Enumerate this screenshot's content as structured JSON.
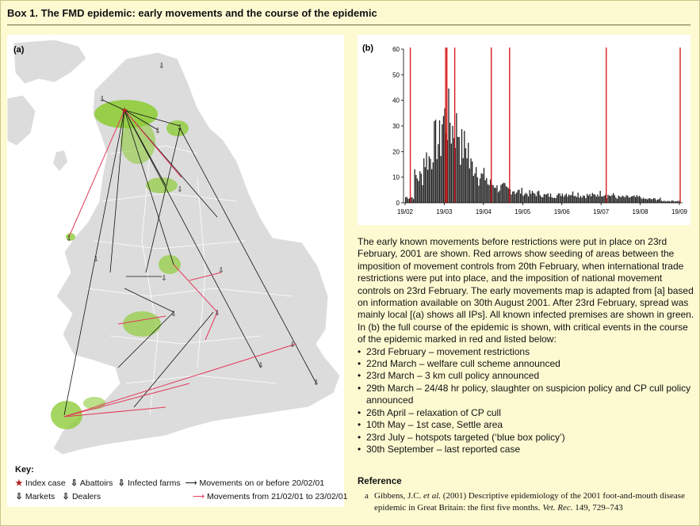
{
  "box_title": "Box 1. The FMD epidemic: early movements and the course of the epidemic",
  "panel_a_label": "(a)",
  "panel_b_label": "(b)",
  "key": {
    "title": "Key:",
    "index_case": "Index case",
    "abattoirs": "Abattoirs",
    "infected_farms": "Infected farms",
    "movements_before": "Movements on or before 20/02/01",
    "markets": "Markets",
    "dealers": "Dealers",
    "movements_after": "Movements from 21/02/01 to 23/02/01"
  },
  "colors": {
    "background": "#fdfad2",
    "land": "#dcdcdc",
    "infected": "#8fcc3a",
    "red_arrow": "#e23a5a",
    "event_line": "#d91c1c"
  },
  "chart_data": {
    "type": "bar",
    "ylim": [
      0,
      60
    ],
    "yticks": [
      0,
      10,
      20,
      30,
      40,
      50,
      60
    ],
    "xtick_labels": [
      "19/02",
      "19/03",
      "19/04",
      "19/05",
      "19/06",
      "19/07",
      "19/08",
      "19/09"
    ],
    "critical_event_labels": [
      "23/02",
      "22/03",
      "23/03",
      "29/03",
      "26/04",
      "10/05",
      "23/07",
      "30/09"
    ],
    "weekly_peak_cases": [
      {
        "week": "19/02",
        "value": 3
      },
      {
        "week": "26/02",
        "value": 14
      },
      {
        "week": "05/03",
        "value": 24
      },
      {
        "week": "12/03",
        "value": 33
      },
      {
        "week": "19/03",
        "value": 45
      },
      {
        "week": "26/03",
        "value": 40
      },
      {
        "week": "02/04",
        "value": 30
      },
      {
        "week": "09/04",
        "value": 20
      },
      {
        "week": "16/04",
        "value": 14
      },
      {
        "week": "23/04",
        "value": 10
      },
      {
        "week": "30/04",
        "value": 8
      },
      {
        "week": "07/05",
        "value": 7
      },
      {
        "week": "14/05",
        "value": 6
      },
      {
        "week": "21/05",
        "value": 5
      },
      {
        "week": "28/05",
        "value": 5
      },
      {
        "week": "04/06",
        "value": 4
      },
      {
        "week": "11/06",
        "value": 4
      },
      {
        "week": "18/06",
        "value": 5
      },
      {
        "week": "25/06",
        "value": 5
      },
      {
        "week": "02/07",
        "value": 4
      },
      {
        "week": "09/07",
        "value": 4
      },
      {
        "week": "16/07",
        "value": 5
      },
      {
        "week": "23/07",
        "value": 4
      },
      {
        "week": "30/07",
        "value": 3
      },
      {
        "week": "06/08",
        "value": 3
      },
      {
        "week": "13/08",
        "value": 3
      },
      {
        "week": "20/08",
        "value": 2
      },
      {
        "week": "27/08",
        "value": 2
      },
      {
        "week": "03/09",
        "value": 1
      },
      {
        "week": "10/09",
        "value": 1
      },
      {
        "week": "17/09",
        "value": 1
      },
      {
        "week": "24/09",
        "value": 1
      }
    ]
  },
  "description": "The early known movements before restrictions were put in place on 23rd February, 2001 are shown. Red arrows show seeding of areas between the imposition of movement controls from 20th February, when international trade restrictions were put into place, and the imposition of national movement controls on 23rd February. The early movements map is adapted from [a] based on information available on 30th August 2001. After 23rd February, spread was mainly local [(a) shows all IPs]. All known infected premises are shown in green. In (b) the full course of the epidemic is shown, with critical events in the course of the epidemic marked in red and listed below:",
  "events": [
    "23rd February – movement restrictions",
    "22nd March – welfare cull scheme announced",
    "23rd March – 3 km cull policy announced",
    "29th March – 24/48 hr policy, slaughter on suspicion policy and CP cull policy announced",
    "26th April – relaxation of CP cull",
    "10th May – 1st case, Settle area",
    "23rd July – hotspots targeted (‘blue box policy’)",
    "30th September – last reported case"
  ],
  "reference": {
    "title": "Reference",
    "marker": "a",
    "authors": "Gibbens, J.C.",
    "etal": "et al.",
    "text": "(2001) Descriptive epidemiology of the 2001 foot-and-mouth disease epidemic in Great Britain: the first five months.",
    "journal": "Vet. Rec.",
    "citation": "149, 729–743"
  }
}
